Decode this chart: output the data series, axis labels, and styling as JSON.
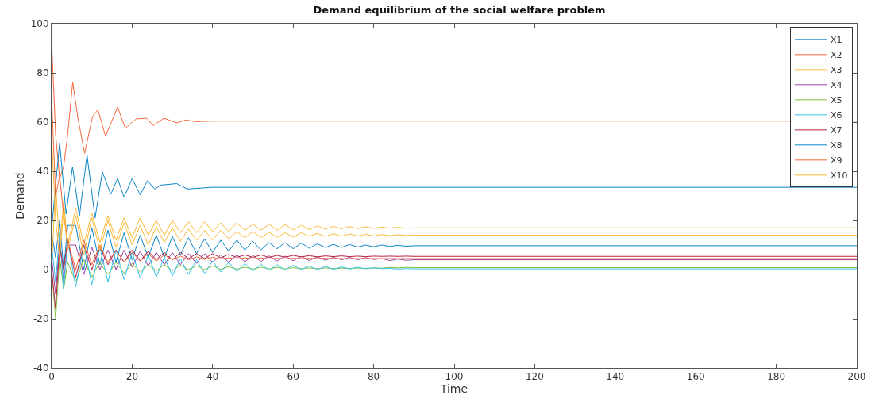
{
  "chart_data": {
    "type": "line",
    "title": "Demand equilibrium of the social welfare problem",
    "xlabel": "Time",
    "ylabel": "Demand",
    "xlim": [
      0,
      200
    ],
    "xticks": [
      0,
      20,
      40,
      60,
      80,
      100,
      120,
      140,
      160,
      180,
      200
    ],
    "ylim": [
      -40,
      100
    ],
    "yticks": [
      -40,
      -20,
      0,
      20,
      40,
      60,
      80,
      100
    ],
    "grid": false,
    "legend": "top right",
    "marker": "none",
    "line_style": "solid",
    "x": [
      0,
      1,
      2,
      3,
      4,
      6,
      8,
      10,
      12,
      14,
      16,
      18,
      20,
      22,
      24,
      26,
      28,
      30,
      32,
      34,
      36,
      38,
      40,
      42,
      44,
      46,
      48,
      50,
      52,
      54,
      56,
      58,
      60,
      62,
      64,
      66,
      68,
      70,
      72,
      74,
      76,
      78,
      80,
      82,
      84,
      86,
      88,
      90,
      200
    ],
    "series": [
      {
        "name": "X1",
        "color": "#0a85c7",
        "values": [
          15,
          5,
          20,
          0,
          18,
          18,
          0,
          17,
          2,
          16,
          3,
          15,
          4,
          14,
          5,
          14,
          5,
          13.5,
          6,
          13,
          6.5,
          12.5,
          7,
          12,
          7.5,
          12,
          8,
          11.5,
          8,
          11,
          8.5,
          11,
          8.5,
          10.8,
          8.7,
          10.5,
          9,
          10.3,
          9,
          10.2,
          9.2,
          10,
          9.3,
          10,
          9.4,
          9.9,
          9.5,
          9.7,
          9.7
        ]
      },
      {
        "name": "X2",
        "color": "#f4683a",
        "x": [
          0,
          1,
          2,
          3,
          4,
          5.25,
          6.5,
          8.2,
          10.2,
          11.5,
          13.4,
          16.4,
          18.3,
          21,
          23.6,
          25.2,
          27.9,
          31.1,
          33.4,
          35.7,
          40,
          200
        ],
        "values": [
          93,
          55,
          37,
          42,
          55,
          76.3,
          62,
          47.3,
          62.4,
          65,
          54.3,
          66.1,
          57.5,
          61.3,
          61.6,
          58.6,
          61.6,
          59.7,
          60.9,
          60.2,
          60.4,
          60.4
        ]
      },
      {
        "name": "X3",
        "color": "#fdb93a",
        "values": [
          0,
          35,
          8,
          28,
          10,
          25,
          10,
          23,
          11,
          22,
          12,
          21,
          13,
          21,
          14,
          20,
          14,
          20,
          15,
          19.5,
          15,
          19.5,
          15.5,
          19,
          15.5,
          19,
          16,
          18.5,
          16,
          18.5,
          16,
          18.3,
          16.2,
          18,
          16.3,
          17.8,
          16.5,
          17.6,
          16.6,
          17.5,
          16.7,
          17.4,
          16.8,
          17.3,
          16.9,
          17.2,
          16.9,
          17,
          17
        ]
      },
      {
        "name": "X4",
        "color": "#9b3fa5",
        "values": [
          5,
          -10,
          12,
          -5,
          10,
          10,
          -2,
          9,
          0,
          8,
          0,
          8,
          1,
          7.5,
          1.5,
          7,
          2,
          7,
          2,
          6.5,
          2.5,
          6.5,
          3,
          6,
          3,
          6,
          3.2,
          5.8,
          3.3,
          5.6,
          3.5,
          5.5,
          3.6,
          5.4,
          3.7,
          5.2,
          3.8,
          5,
          4,
          5,
          4,
          4.9,
          4.1,
          4.5,
          3.7,
          4.3,
          3.8,
          4,
          4
        ]
      },
      {
        "name": "X5",
        "color": "#7fbf3f",
        "values": [
          0,
          -20,
          5,
          -8,
          3,
          -5,
          4,
          -3,
          3,
          -2,
          3,
          -1.5,
          2.5,
          -1,
          2,
          -0.5,
          2,
          -0.5,
          1.8,
          0,
          1.5,
          0,
          1.5,
          0.1,
          1.2,
          0.2,
          1,
          0.2,
          1,
          0.3,
          0.9,
          0.3,
          0.8,
          0.4,
          0.7,
          0.4,
          0.7,
          0.4,
          0.6,
          0.5,
          0.6,
          0.5,
          0.6,
          0.6,
          0.9,
          0.7,
          0.9,
          0.8,
          0.8
        ]
      },
      {
        "name": "X6",
        "color": "#35c4ee",
        "values": [
          10,
          -5,
          15,
          -8,
          12,
          -7,
          10,
          -6,
          9,
          -5,
          8,
          -4,
          7,
          -3.5,
          6,
          -3,
          5,
          -2.5,
          4.5,
          -2,
          4,
          -1.5,
          3.5,
          -1,
          3,
          -0.8,
          2.5,
          -0.5,
          2.2,
          -0.3,
          2,
          -0.2,
          1.8,
          0,
          1.5,
          0,
          1.3,
          0.1,
          1.1,
          0.2,
          1,
          0.3,
          0.8,
          0.4,
          0.5,
          0.2,
          0.4,
          0.3,
          0.3
        ]
      },
      {
        "name": "X7",
        "color": "#b8203f",
        "values": [
          0,
          -16,
          10,
          0,
          12,
          -3,
          10,
          0,
          9,
          2,
          8,
          3,
          8,
          3.5,
          7.5,
          4,
          7,
          4,
          7,
          4.5,
          6.5,
          4.5,
          6.5,
          4.8,
          6.2,
          5,
          6,
          5,
          6,
          5,
          5.8,
          5.1,
          5.8,
          5.2,
          5.7,
          5.2,
          5.6,
          5.3,
          5.6,
          5.3,
          5.5,
          5.3,
          5.5,
          5.4,
          5.5,
          5.4,
          5.5,
          5.4,
          5.4
        ]
      },
      {
        "name": "X8",
        "color": "#0a85c7",
        "x": [
          0,
          2,
          3.6,
          5.2,
          6.9,
          8.8,
          10.8,
          12.6,
          14.7,
          16.4,
          18,
          20,
          22,
          23.8,
          25.6,
          27.2,
          31.1,
          33.7,
          40,
          200
        ],
        "values": [
          16.8,
          51.6,
          22.6,
          41.9,
          21.6,
          46.6,
          21,
          39.8,
          30.6,
          37.1,
          29.4,
          37.1,
          30.4,
          36.2,
          32.8,
          34.4,
          35,
          32.8,
          33.5,
          33.5
        ]
      },
      {
        "name": "X9",
        "color": "#f4683a",
        "values": [
          70,
          30,
          38,
          22,
          12,
          0,
          12,
          2,
          10,
          3,
          8,
          3,
          7,
          3.5,
          6.5,
          3.5,
          6,
          4,
          5.5,
          4,
          5.2,
          4.2,
          5,
          4.3,
          4.8,
          4.3,
          4.8,
          4.4,
          4.7,
          4.4,
          4.6,
          4.4,
          4.6,
          4.5,
          4.6,
          4.5,
          4.6,
          4.5,
          4.5,
          4.5,
          4.5,
          4.5,
          4.5,
          4.5,
          4.5,
          4.5,
          4.5,
          4.5,
          4.5
        ]
      },
      {
        "name": "X10",
        "color": "#fdb93a",
        "values": [
          55,
          20,
          5,
          24,
          8,
          22,
          6,
          21,
          8,
          20,
          9,
          19,
          10,
          18,
          10,
          17.5,
          11,
          17,
          11.5,
          16.5,
          12,
          16,
          12,
          16,
          12.5,
          15.5,
          13,
          15.5,
          13,
          15.2,
          13.2,
          15,
          13.3,
          15,
          13.5,
          14.8,
          13.5,
          14.6,
          13.6,
          14.5,
          13.7,
          14.4,
          13.7,
          14.3,
          13.8,
          14.2,
          13.9,
          14,
          14
        ]
      }
    ]
  }
}
